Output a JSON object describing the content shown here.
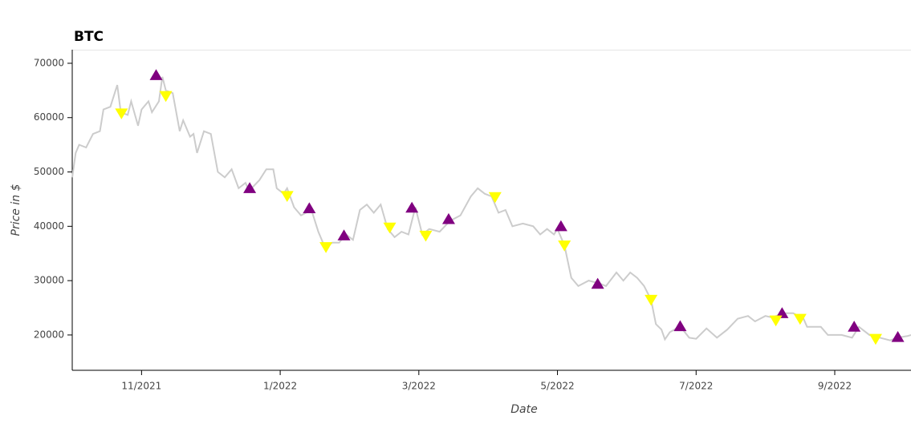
{
  "chart_data": {
    "type": "line",
    "title": "BTC",
    "x_label": "Date",
    "y_label": "Price in $",
    "xlim": [
      10.0,
      22.1
    ],
    "ylim": [
      13500,
      72500
    ],
    "xticks": [
      {
        "value": 11,
        "label": "11/2021"
      },
      {
        "value": 13,
        "label": "1/2022"
      },
      {
        "value": 15,
        "label": "3/2022"
      },
      {
        "value": 17,
        "label": "5/2022"
      },
      {
        "value": 19,
        "label": "7/2022"
      },
      {
        "value": 21,
        "label": "9/2022"
      }
    ],
    "yticks": [
      20000,
      30000,
      40000,
      50000,
      60000,
      70000
    ],
    "series": [
      {
        "kind": "line",
        "color": "#cccccc",
        "x": [
          10.0,
          10.05,
          10.1,
          10.2,
          10.3,
          10.4,
          10.45,
          10.55,
          10.65,
          10.7,
          10.8,
          10.85,
          10.95,
          11.0,
          11.1,
          11.15,
          11.25,
          11.3,
          11.35,
          11.45,
          11.55,
          11.6,
          11.7,
          11.75,
          11.8,
          11.9,
          12.0,
          12.1,
          12.2,
          12.3,
          12.4,
          12.5,
          12.55,
          12.7,
          12.8,
          12.9,
          12.95,
          13.05,
          13.1,
          13.2,
          13.3,
          13.45,
          13.55,
          13.65,
          13.75,
          13.85,
          13.95,
          14.05,
          14.15,
          14.25,
          14.35,
          14.45,
          14.55,
          14.65,
          14.75,
          14.85,
          14.95,
          15.05,
          15.15,
          15.3,
          15.45,
          15.6,
          15.75,
          15.85,
          15.95,
          16.05,
          16.15,
          16.25,
          16.35,
          16.5,
          16.65,
          16.75,
          16.85,
          16.95,
          17.0,
          17.1,
          17.2,
          17.3,
          17.45,
          17.6,
          17.7,
          17.85,
          17.95,
          18.05,
          18.15,
          18.25,
          18.35,
          18.42,
          18.5,
          18.55,
          18.62,
          18.77,
          18.9,
          19.0,
          19.15,
          19.3,
          19.45,
          19.6,
          19.75,
          19.85,
          20.0,
          20.1,
          20.25,
          20.4,
          20.55,
          20.6,
          20.8,
          20.9,
          21.1,
          21.25,
          21.35,
          21.5,
          21.65,
          21.8,
          21.9,
          22.05,
          22.1
        ],
        "values": [
          49000,
          53500,
          55000,
          54500,
          57000,
          57500,
          61500,
          62000,
          66000,
          61000,
          60500,
          63000,
          58500,
          61500,
          63000,
          61000,
          63000,
          67500,
          65000,
          64500,
          57500,
          59500,
          56500,
          57000,
          53500,
          57500,
          57000,
          50000,
          49000,
          50500,
          47000,
          48000,
          46500,
          48500,
          50500,
          50500,
          47000,
          46000,
          47000,
          43500,
          42000,
          43000,
          39000,
          36000,
          37000,
          37000,
          38500,
          37500,
          43000,
          44000,
          42500,
          44000,
          39500,
          38000,
          39000,
          38500,
          43500,
          38500,
          39500,
          39000,
          41000,
          42000,
          45500,
          47000,
          46000,
          45500,
          42500,
          43000,
          40000,
          40500,
          40000,
          38500,
          39500,
          38500,
          39500,
          36500,
          30500,
          29000,
          30000,
          29500,
          29000,
          31500,
          30000,
          31500,
          30500,
          29000,
          26500,
          22000,
          21000,
          19200,
          20500,
          21600,
          19500,
          19300,
          21200,
          19500,
          21000,
          23000,
          23500,
          22500,
          23500,
          23200,
          24000,
          24000,
          23000,
          21500,
          21500,
          20000,
          20000,
          19500,
          21500,
          20000,
          19500,
          19000,
          19500,
          19800,
          20000
        ]
      },
      {
        "kind": "scatter",
        "marker": "triangle",
        "color": "#800080",
        "x": [
          11.21,
          12.56,
          13.42,
          13.92,
          14.9,
          15.43,
          17.05,
          17.58,
          18.77,
          20.24,
          21.28,
          21.91
        ],
        "values": [
          67800,
          47000,
          43300,
          38300,
          43400,
          41300,
          40000,
          29400,
          21600,
          24000,
          21500,
          19600
        ]
      },
      {
        "kind": "scatter",
        "marker": "inverted_triangle",
        "color": "#ffff00",
        "x": [
          10.71,
          11.35,
          13.1,
          13.66,
          14.58,
          15.1,
          16.1,
          17.1,
          18.35,
          20.15,
          20.5,
          21.59
        ],
        "values": [
          60800,
          64000,
          45600,
          36200,
          39800,
          38300,
          45400,
          36500,
          26500,
          22700,
          23000,
          19300
        ]
      }
    ]
  }
}
